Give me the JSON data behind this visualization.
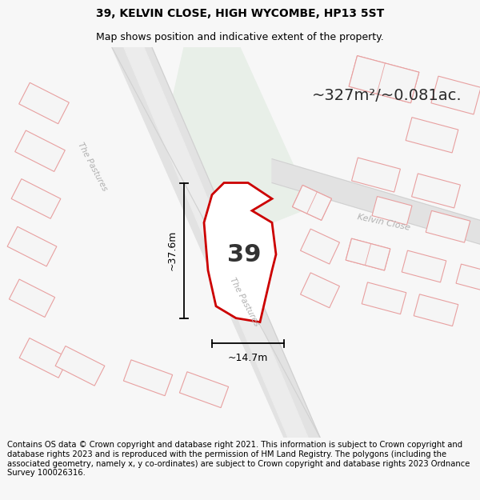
{
  "title_line1": "39, KELVIN CLOSE, HIGH WYCOMBE, HP13 5ST",
  "title_line2": "Map shows position and indicative extent of the property.",
  "area_label": "~327m²/~0.081ac.",
  "property_number": "39",
  "dim_vertical": "~37.6m",
  "dim_horizontal": "~14.7m",
  "road_label1": "The Pastures",
  "road_label2": "The Pastures",
  "road_label3": "Kelvin Close",
  "footer_text": "Contains OS data © Crown copyright and database right 2021. This information is subject to Crown copyright and database rights 2023 and is reproduced with the permission of HM Land Registry. The polygons (including the associated geometry, namely x, y co-ordinates) are subject to Crown copyright and database rights 2023 Ordnance Survey 100026316.",
  "bg_color": "#f7f7f7",
  "map_bg": "#ffffff",
  "green_fill": "#e8efe8",
  "property_fill": "#ffffff",
  "property_stroke": "#cc0000",
  "building_stroke": "#e8a0a0",
  "building_fill": "#f5f5f5",
  "road_fill": "#e2e2e2",
  "road_stroke": "#d0d0d0",
  "title_fontsize": 10,
  "subtitle_fontsize": 9,
  "footer_fontsize": 7.2
}
